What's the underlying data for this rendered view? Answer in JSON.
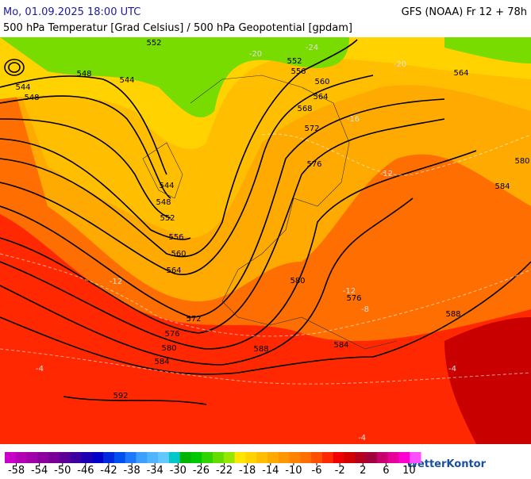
{
  "header": {
    "date": "Mo, 01.09.2025 18:00 UTC",
    "model": "GFS (NOAA) Fr 12 + 78h",
    "subtitle": "500 hPa Temperatur [Grad Celsius] / 500 hPa Geopotential [gpdam]"
  },
  "map": {
    "contour_labels": [
      552,
      544,
      548,
      548,
      544,
      552,
      556,
      560,
      564,
      564,
      568,
      572,
      576,
      580,
      584,
      544,
      548,
      552,
      556,
      560,
      564,
      572,
      576,
      580,
      584,
      588,
      580,
      576,
      584,
      588,
      592
    ],
    "isotherm_labels": [
      -24,
      -20,
      -20,
      -16,
      -12,
      -12,
      -12,
      -8,
      -4,
      -4,
      -4
    ]
  },
  "colorbar": {
    "lim": [
      -60,
      12
    ],
    "ticks": [
      -58,
      -54,
      -50,
      -46,
      -42,
      -38,
      -34,
      -30,
      -26,
      -22,
      -18,
      -14,
      -10,
      -6,
      -2,
      2,
      6,
      10
    ],
    "colors": [
      "#c800c8",
      "#b400b4",
      "#a000a8",
      "#8c00a0",
      "#780096",
      "#5a0096",
      "#3c00a0",
      "#1e00b4",
      "#0000c8",
      "#0028dc",
      "#0050f0",
      "#1e78ff",
      "#3ca0ff",
      "#50b4ff",
      "#64c8ff",
      "#00c8c8",
      "#00b400",
      "#00c800",
      "#32d200",
      "#64dc00",
      "#96e600",
      "#ffe600",
      "#ffd200",
      "#ffbe00",
      "#ffaa00",
      "#ff9600",
      "#ff8200",
      "#ff6e00",
      "#ff5000",
      "#ff2800",
      "#f00000",
      "#d20000",
      "#b4001e",
      "#a0003c",
      "#c8006e",
      "#e6009c",
      "#ff00d2",
      "#ff50ff"
    ]
  },
  "logo": "WetterKontor"
}
